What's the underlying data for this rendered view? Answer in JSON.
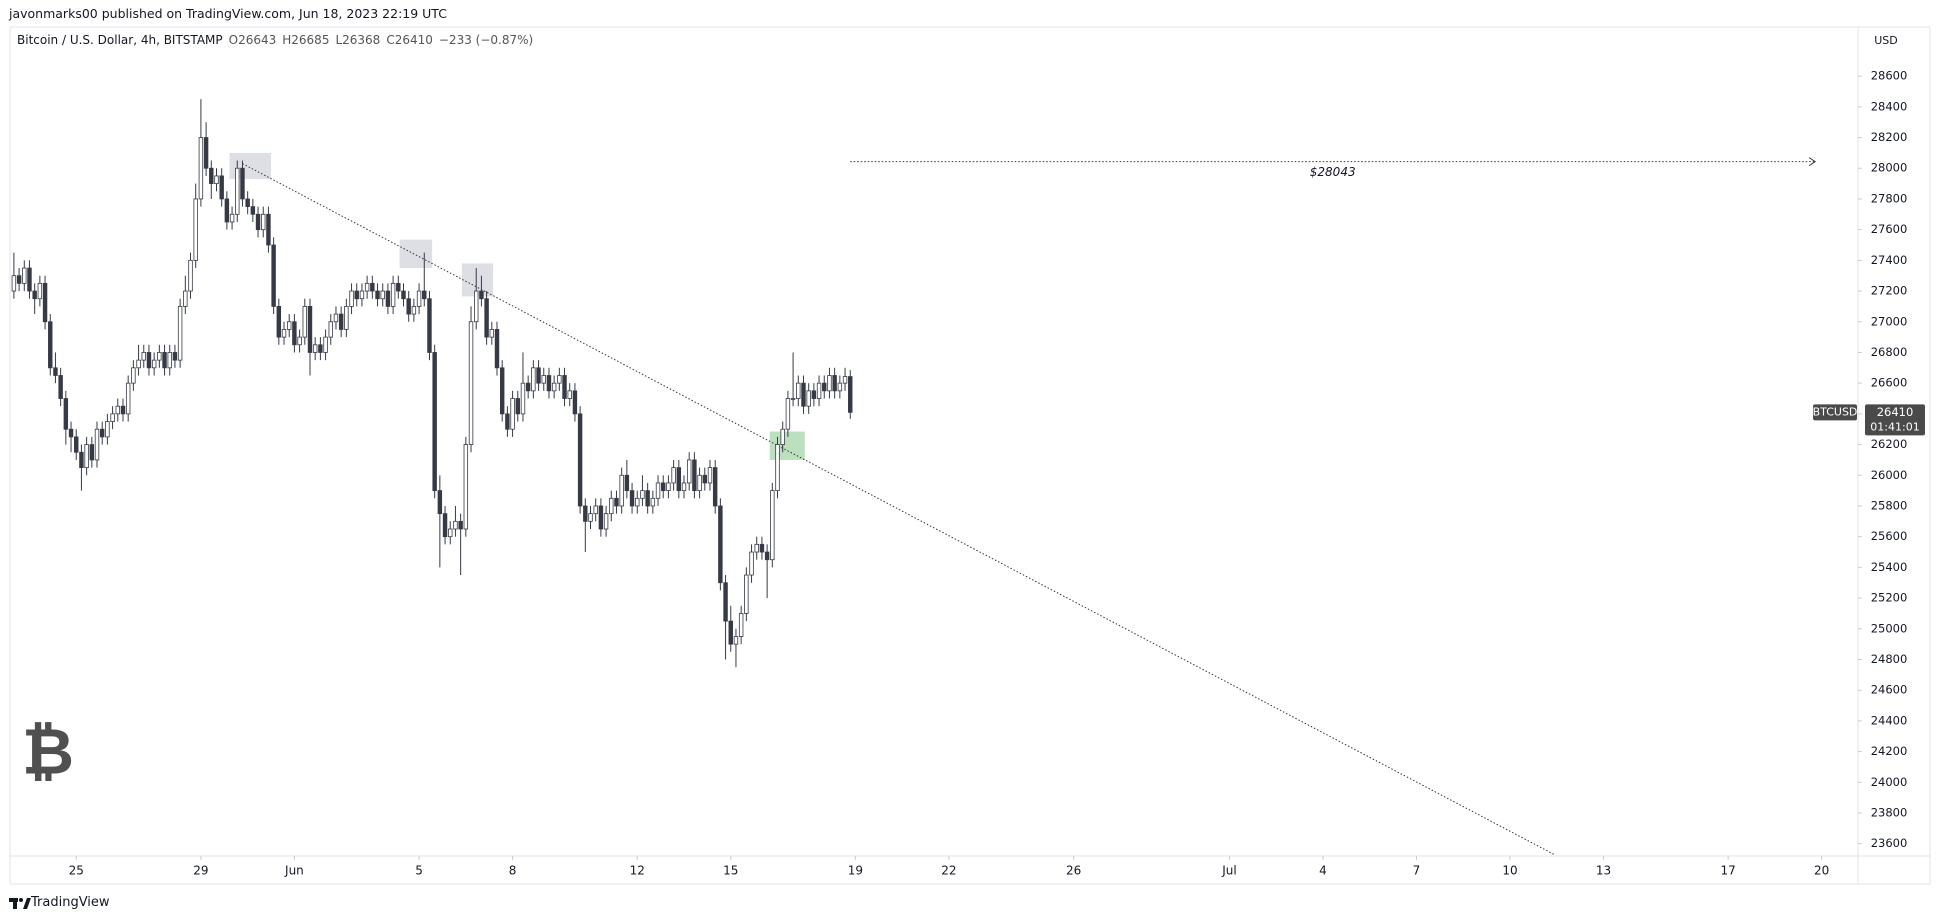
{
  "header": {
    "text": "javonmarks00 published on TradingView.com, Jun 18, 2023 22:19 UTC"
  },
  "chart_data": {
    "type": "candlestick",
    "symbol": "Bitcoin / U.S. Dollar, 4h, BITSTAMP",
    "legend_values": [
      "O26643",
      "H26685",
      "L26368",
      "C26410",
      "−233 (−0.87%)"
    ],
    "currency": "USD",
    "symbol_tag": "BTCUSD",
    "last_price_label": "26410",
    "countdown": "01:41:01",
    "logo": "₿",
    "up_color": "#ffffff",
    "down_color": "#363a45",
    "edge_color": "#363a45",
    "xlim": [
      525,
      1948
    ],
    "ylim": [
      23520,
      28920
    ],
    "grid": false,
    "xticks": [
      {
        "value": 576,
        "label": "25"
      },
      {
        "value": 672,
        "label": "29"
      },
      {
        "value": 744,
        "label": "Jun"
      },
      {
        "value": 840,
        "label": "5"
      },
      {
        "value": 912,
        "label": "8"
      },
      {
        "value": 1008,
        "label": "12"
      },
      {
        "value": 1080,
        "label": "15"
      },
      {
        "value": 1176,
        "label": "19"
      },
      {
        "value": 1248,
        "label": "22"
      },
      {
        "value": 1344,
        "label": "26"
      },
      {
        "value": 1464,
        "label": "Jul"
      },
      {
        "value": 1536,
        "label": "4"
      },
      {
        "value": 1608,
        "label": "7"
      },
      {
        "value": 1680,
        "label": "10"
      },
      {
        "value": 1752,
        "label": "13"
      },
      {
        "value": 1848,
        "label": "17"
      },
      {
        "value": 1920,
        "label": "20"
      }
    ],
    "yticks": [
      23600,
      23800,
      24000,
      24200,
      24400,
      24600,
      24800,
      25000,
      25200,
      25400,
      25600,
      25800,
      26000,
      26200,
      26400,
      26600,
      26800,
      27000,
      27200,
      27400,
      27600,
      27800,
      28000,
      28200,
      28400,
      28600
    ],
    "x": [
      528,
      532,
      536,
      540,
      544,
      548,
      552,
      556,
      560,
      564,
      568,
      572,
      576,
      580,
      584,
      588,
      592,
      596,
      600,
      604,
      608,
      612,
      616,
      620,
      624,
      628,
      632,
      636,
      640,
      644,
      648,
      652,
      656,
      660,
      664,
      668,
      672,
      676,
      680,
      684,
      688,
      692,
      696,
      700,
      704,
      708,
      712,
      716,
      720,
      724,
      728,
      732,
      736,
      740,
      744,
      748,
      752,
      756,
      760,
      764,
      768,
      772,
      776,
      780,
      784,
      788,
      792,
      796,
      800,
      804,
      808,
      812,
      816,
      820,
      824,
      828,
      832,
      836,
      840,
      844,
      848,
      852,
      856,
      860,
      864,
      868,
      872,
      876,
      880,
      884,
      888,
      892,
      896,
      900,
      904,
      908,
      912,
      916,
      920,
      924,
      928,
      932,
      936,
      940,
      944,
      948,
      952,
      956,
      960,
      964,
      968,
      972,
      976,
      980,
      984,
      988,
      992,
      996,
      1000,
      1004,
      1008,
      1012,
      1016,
      1020,
      1024,
      1028,
      1032,
      1036,
      1040,
      1044,
      1048,
      1052,
      1056,
      1060,
      1064,
      1068,
      1072,
      1076,
      1080,
      1084,
      1088,
      1092,
      1096,
      1100,
      1104,
      1108,
      1112,
      1116,
      1120,
      1124,
      1128,
      1132,
      1136,
      1140,
      1144,
      1148,
      1152,
      1156,
      1160,
      1164,
      1168,
      1172
    ],
    "ohlc": [
      [
        27200,
        27450,
        27150,
        27300
      ],
      [
        27300,
        27350,
        27200,
        27250
      ],
      [
        27250,
        27400,
        27200,
        27350
      ],
      [
        27350,
        27400,
        27150,
        27200
      ],
      [
        27200,
        27250,
        27050,
        27150
      ],
      [
        27150,
        27300,
        27100,
        27250
      ],
      [
        27250,
        27300,
        26950,
        27000
      ],
      [
        27000,
        27050,
        26650,
        26700
      ],
      [
        26700,
        26800,
        26600,
        26650
      ],
      [
        26650,
        26700,
        26450,
        26500
      ],
      [
        26500,
        26550,
        26200,
        26300
      ],
      [
        26300,
        26350,
        26150,
        26250
      ],
      [
        26250,
        26300,
        26100,
        26150
      ],
      [
        26150,
        26200,
        25900,
        26050
      ],
      [
        26050,
        26250,
        26000,
        26200
      ],
      [
        26200,
        26250,
        26050,
        26100
      ],
      [
        26100,
        26350,
        26050,
        26300
      ],
      [
        26300,
        26350,
        26200,
        26250
      ],
      [
        26250,
        26400,
        26200,
        26350
      ],
      [
        26350,
        26450,
        26300,
        26400
      ],
      [
        26400,
        26500,
        26350,
        26450
      ],
      [
        26450,
        26500,
        26350,
        26400
      ],
      [
        26400,
        26650,
        26350,
        26600
      ],
      [
        26600,
        26750,
        26550,
        26700
      ],
      [
        26700,
        26850,
        26650,
        26750
      ],
      [
        26750,
        26850,
        26700,
        26800
      ],
      [
        26800,
        26850,
        26650,
        26700
      ],
      [
        26700,
        26800,
        26650,
        26750
      ],
      [
        26750,
        26850,
        26700,
        26800
      ],
      [
        26800,
        26850,
        26650,
        26700
      ],
      [
        26700,
        26850,
        26650,
        26800
      ],
      [
        26800,
        26850,
        26700,
        26750
      ],
      [
        26750,
        27150,
        26700,
        27100
      ],
      [
        27100,
        27300,
        27050,
        27200
      ],
      [
        27200,
        27450,
        27150,
        27400
      ],
      [
        27400,
        27900,
        27350,
        27800
      ],
      [
        27800,
        28450,
        27750,
        28200
      ],
      [
        28200,
        28300,
        27950,
        28000
      ],
      [
        28000,
        28050,
        27800,
        27900
      ],
      [
        27900,
        28000,
        27850,
        27950
      ],
      [
        27950,
        28000,
        27750,
        27800
      ],
      [
        27800,
        27850,
        27600,
        27650
      ],
      [
        27650,
        27750,
        27600,
        27700
      ],
      [
        27700,
        28050,
        27650,
        28000
      ],
      [
        28000,
        28050,
        27750,
        27800
      ],
      [
        27800,
        27850,
        27700,
        27750
      ],
      [
        27750,
        27800,
        27650,
        27700
      ],
      [
        27700,
        27750,
        27550,
        27600
      ],
      [
        27600,
        27750,
        27550,
        27700
      ],
      [
        27700,
        27750,
        27450,
        27500
      ],
      [
        27500,
        27550,
        27050,
        27100
      ],
      [
        27100,
        27150,
        26850,
        26900
      ],
      [
        26900,
        27000,
        26850,
        26950
      ],
      [
        26950,
        27050,
        26900,
        27000
      ],
      [
        27000,
        27050,
        26800,
        26850
      ],
      [
        26850,
        26950,
        26800,
        26900
      ],
      [
        26900,
        27150,
        26850,
        27100
      ],
      [
        27100,
        27150,
        26650,
        26800
      ],
      [
        26800,
        26900,
        26750,
        26850
      ],
      [
        26850,
        26900,
        26750,
        26800
      ],
      [
        26800,
        26950,
        26750,
        26900
      ],
      [
        26900,
        27050,
        26850,
        27000
      ],
      [
        27000,
        27100,
        26950,
        27050
      ],
      [
        27050,
        27100,
        26900,
        26950
      ],
      [
        26950,
        27150,
        26900,
        27100
      ],
      [
        27100,
        27250,
        27050,
        27200
      ],
      [
        27200,
        27250,
        27100,
        27150
      ],
      [
        27150,
        27250,
        27100,
        27200
      ],
      [
        27200,
        27300,
        27150,
        27250
      ],
      [
        27250,
        27300,
        27150,
        27200
      ],
      [
        27200,
        27250,
        27100,
        27150
      ],
      [
        27150,
        27250,
        27100,
        27200
      ],
      [
        27200,
        27250,
        27050,
        27100
      ],
      [
        27100,
        27300,
        27050,
        27250
      ],
      [
        27250,
        27300,
        27150,
        27200
      ],
      [
        27200,
        27250,
        27100,
        27150
      ],
      [
        27150,
        27200,
        27000,
        27050
      ],
      [
        27050,
        27150,
        27000,
        27100
      ],
      [
        27100,
        27250,
        27050,
        27200
      ],
      [
        27200,
        27450,
        27100,
        27150
      ],
      [
        27150,
        27200,
        26750,
        26800
      ],
      [
        26800,
        26850,
        25850,
        25900
      ],
      [
        25900,
        26000,
        25400,
        25750
      ],
      [
        25750,
        25800,
        25550,
        25600
      ],
      [
        25600,
        25700,
        25550,
        25650
      ],
      [
        25650,
        25800,
        25600,
        25700
      ],
      [
        25700,
        25750,
        25350,
        25650
      ],
      [
        25650,
        26250,
        25600,
        26200
      ],
      [
        26200,
        27100,
        26150,
        27000
      ],
      [
        27000,
        27350,
        26950,
        27200
      ],
      [
        27200,
        27300,
        27100,
        27150
      ],
      [
        27150,
        27200,
        26850,
        26900
      ],
      [
        26900,
        27000,
        26850,
        26950
      ],
      [
        26950,
        27000,
        26650,
        26700
      ],
      [
        26700,
        26750,
        26350,
        26400
      ],
      [
        26400,
        26450,
        26250,
        26300
      ],
      [
        26300,
        26550,
        26250,
        26500
      ],
      [
        26500,
        26550,
        26350,
        26400
      ],
      [
        26400,
        26800,
        26350,
        26600
      ],
      [
        26600,
        26650,
        26500,
        26550
      ],
      [
        26550,
        26750,
        26500,
        26700
      ],
      [
        26700,
        26750,
        26550,
        26600
      ],
      [
        26600,
        26700,
        26550,
        26650
      ],
      [
        26650,
        26700,
        26500,
        26550
      ],
      [
        26550,
        26650,
        26500,
        26600
      ],
      [
        26600,
        26700,
        26550,
        26650
      ],
      [
        26650,
        26700,
        26450,
        26500
      ],
      [
        26500,
        26600,
        26450,
        26550
      ],
      [
        26550,
        26600,
        26350,
        26400
      ],
      [
        26400,
        26450,
        25750,
        25800
      ],
      [
        25800,
        25850,
        25500,
        25700
      ],
      [
        25700,
        25800,
        25650,
        25750
      ],
      [
        25750,
        25850,
        25700,
        25800
      ],
      [
        25800,
        25850,
        25600,
        25650
      ],
      [
        25650,
        25800,
        25600,
        25750
      ],
      [
        25750,
        25900,
        25700,
        25850
      ],
      [
        25850,
        25900,
        25750,
        25800
      ],
      [
        25800,
        26050,
        25750,
        26000
      ],
      [
        26000,
        26100,
        25850,
        25900
      ],
      [
        25900,
        25950,
        25750,
        25800
      ],
      [
        25800,
        25900,
        25750,
        25850
      ],
      [
        25850,
        26000,
        25800,
        25900
      ],
      [
        25900,
        25950,
        25750,
        25800
      ],
      [
        25800,
        25900,
        25750,
        25850
      ],
      [
        25850,
        26000,
        25800,
        25950
      ],
      [
        25950,
        26000,
        25850,
        25900
      ],
      [
        25900,
        26000,
        25850,
        25950
      ],
      [
        25950,
        26100,
        25900,
        26050
      ],
      [
        26050,
        26100,
        25850,
        25900
      ],
      [
        25900,
        26000,
        25850,
        25950
      ],
      [
        25950,
        26150,
        25900,
        26100
      ],
      [
        26100,
        26150,
        25850,
        25900
      ],
      [
        25900,
        26050,
        25850,
        26000
      ],
      [
        26000,
        26050,
        25900,
        25950
      ],
      [
        25950,
        26100,
        25900,
        26050
      ],
      [
        26050,
        26100,
        25750,
        25800
      ],
      [
        25800,
        25850,
        25250,
        25300
      ],
      [
        25300,
        25350,
        24800,
        25050
      ],
      [
        25050,
        25150,
        24850,
        24900
      ],
      [
        24900,
        25000,
        24750,
        24950
      ],
      [
        24950,
        25150,
        24900,
        25100
      ],
      [
        25100,
        25400,
        25050,
        25350
      ],
      [
        25350,
        25550,
        25300,
        25500
      ],
      [
        25500,
        25600,
        25450,
        25550
      ],
      [
        25550,
        25600,
        25450,
        25500
      ],
      [
        25500,
        25550,
        25200,
        25450
      ],
      [
        25450,
        25950,
        25400,
        25900
      ],
      [
        25900,
        26250,
        25850,
        26200
      ],
      [
        26200,
        26350,
        26150,
        26300
      ],
      [
        26300,
        26550,
        26250,
        26500
      ],
      [
        26500,
        26800,
        26450,
        26500
      ],
      [
        26500,
        26650,
        26450,
        26600
      ],
      [
        26600,
        26650,
        26400,
        26450
      ],
      [
        26450,
        26600,
        26400,
        26550
      ],
      [
        26550,
        26600,
        26450,
        26500
      ],
      [
        26500,
        26650,
        26450,
        26600
      ],
      [
        26600,
        26650,
        26500,
        26550
      ],
      [
        26550,
        26700,
        26500,
        26650
      ],
      [
        26650,
        26700,
        26500,
        26550
      ],
      [
        26550,
        26650,
        26500,
        26600
      ],
      [
        26600,
        26700,
        26550,
        26643
      ],
      [
        26643,
        26685,
        26368,
        26410
      ]
    ],
    "trendline": {
      "x": [
        704,
        1714
      ],
      "y": [
        28030,
        23530
      ]
    },
    "target": {
      "value": 28043,
      "label": "$28043",
      "x": [
        1172,
        1915
      ]
    },
    "highlights": [
      {
        "x": [
          694,
          726
        ],
        "y": [
          27930,
          28100
        ],
        "color": "#d1d4dc"
      },
      {
        "x": [
          825,
          850
        ],
        "y": [
          27350,
          27535
        ],
        "color": "#d1d4dc"
      },
      {
        "x": [
          873,
          897
        ],
        "y": [
          27165,
          27380
        ],
        "color": "#d1d4dc"
      },
      {
        "x": [
          1110,
          1137
        ],
        "y": [
          26100,
          26285
        ],
        "color": "#a5d6a7"
      }
    ]
  },
  "footer": {
    "brand": "TradingView"
  }
}
